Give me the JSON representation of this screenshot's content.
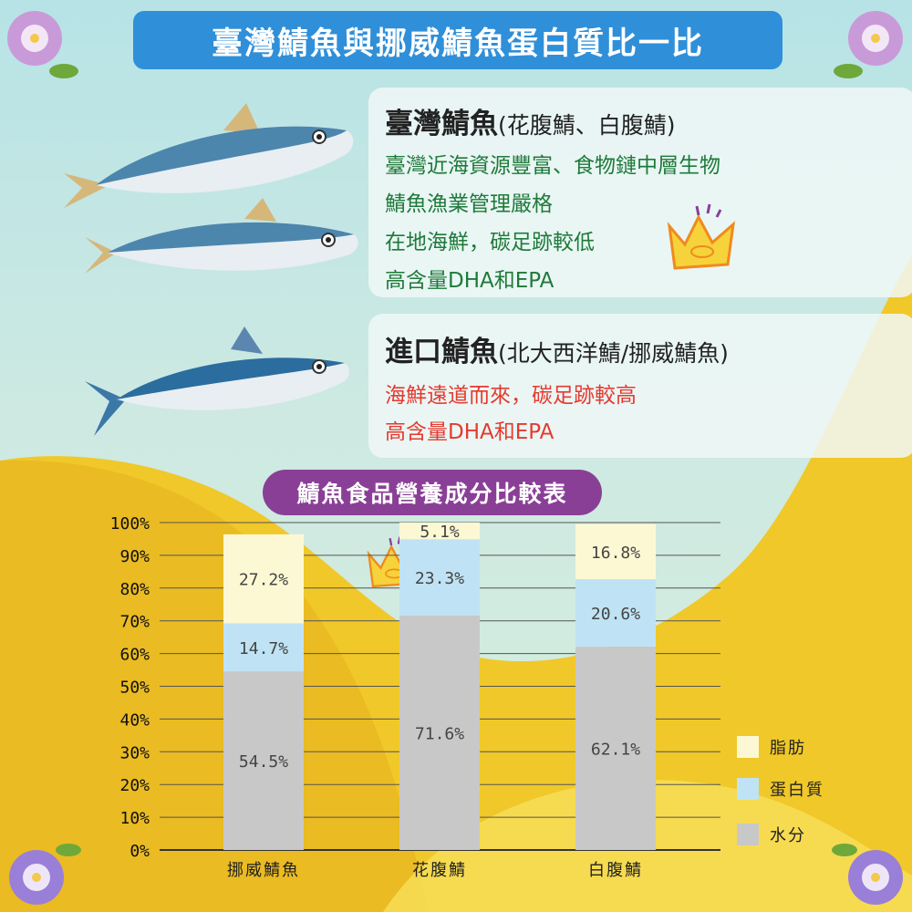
{
  "title": "臺灣鯖魚與挪威鯖魚蛋白質比一比",
  "taiwan": {
    "heading": "臺灣鯖魚",
    "heading_sub": "(花腹鯖、白腹鯖)",
    "lines": [
      "臺灣近海資源豐富、食物鏈中層生物",
      "鯖魚漁業管理嚴格",
      "在地海鮮，碳足跡較低",
      "高含量DHA和EPA"
    ]
  },
  "imported": {
    "heading": "進口鯖魚",
    "heading_sub": "(北大西洋鯖/挪威鯖魚)",
    "lines": [
      "海鮮遠道而來，碳足跡較高",
      "高含量DHA和EPA"
    ]
  },
  "chart_title": "鯖魚食品營養成分比較表",
  "colors": {
    "banner": "#2f8fd9",
    "chart_banner": "#8a3f96",
    "fat": "#fdf8d4",
    "protein": "#bfe3f4",
    "water": "#c8c8c8",
    "yellow": "#f0c82a"
  },
  "icons": [
    "crown-fish-icon",
    "morning-glory-flower-icon",
    "mackerel-fish-icon"
  ],
  "chart_data": {
    "type": "bar",
    "stacked": true,
    "categories": [
      "挪威鯖魚",
      "花腹鯖",
      "白腹鯖"
    ],
    "series": [
      {
        "name": "水分",
        "values": [
          54.5,
          71.6,
          62.1
        ],
        "labels": [
          "54.5%",
          "71.6%",
          "62.1%"
        ]
      },
      {
        "name": "蛋白質",
        "values": [
          14.7,
          23.3,
          20.6
        ],
        "labels": [
          "14.7%",
          "23.3%",
          "20.6%"
        ]
      },
      {
        "name": "脂肪",
        "values": [
          27.2,
          5.1,
          16.8
        ],
        "labels": [
          "27.2%",
          "5.1%",
          "16.8%"
        ]
      }
    ],
    "yticks": [
      "0%",
      "10%",
      "20%",
      "30%",
      "40%",
      "50%",
      "60%",
      "70%",
      "80%",
      "90%",
      "100%"
    ],
    "ylim": [
      0,
      100
    ],
    "grid": true,
    "legend_position": "right",
    "legend": [
      "脂肪",
      "蛋白質",
      "水分"
    ]
  }
}
